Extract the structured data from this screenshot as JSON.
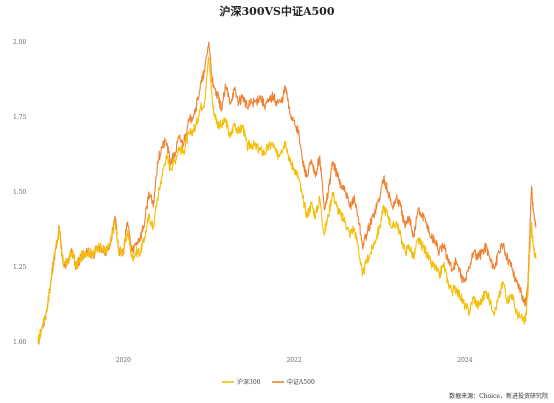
{
  "chart_data": {
    "type": "line",
    "title": "沪深300VS中证A500",
    "xlabel": "",
    "ylabel": "",
    "xlim": [
      2019.0,
      2024.95
    ],
    "ylim": [
      0.98,
      2.06
    ],
    "x_ticks": [
      {
        "label": "2020",
        "value": 2020
      },
      {
        "label": "2022",
        "value": 2022
      },
      {
        "label": "2024",
        "value": 2024
      }
    ],
    "y_ticks": [
      {
        "label": "1.00",
        "value": 1.0
      },
      {
        "label": "1.25",
        "value": 1.25
      },
      {
        "label": "1.50",
        "value": 1.5
      },
      {
        "label": "1.75",
        "value": 1.75
      },
      {
        "label": "2.00",
        "value": 2.0
      }
    ],
    "grid": false,
    "legend_position": "bottom-center",
    "series": [
      {
        "name": "沪深300",
        "color": "#F5BE0A",
        "x": [
          2019.0,
          2019.05,
          2019.1,
          2019.15,
          2019.2,
          2019.25,
          2019.3,
          2019.35,
          2019.4,
          2019.45,
          2019.5,
          2019.55,
          2019.6,
          2019.65,
          2019.7,
          2019.75,
          2019.8,
          2019.85,
          2019.9,
          2019.95,
          2020.0,
          2020.05,
          2020.1,
          2020.15,
          2020.2,
          2020.25,
          2020.3,
          2020.35,
          2020.4,
          2020.45,
          2020.5,
          2020.55,
          2020.6,
          2020.65,
          2020.7,
          2020.75,
          2020.8,
          2020.85,
          2020.9,
          2020.95,
          2021.0,
          2021.05,
          2021.1,
          2021.15,
          2021.2,
          2021.25,
          2021.3,
          2021.35,
          2021.4,
          2021.45,
          2021.5,
          2021.55,
          2021.6,
          2021.65,
          2021.7,
          2021.75,
          2021.8,
          2021.85,
          2021.9,
          2021.95,
          2022.0,
          2022.05,
          2022.1,
          2022.15,
          2022.2,
          2022.25,
          2022.3,
          2022.35,
          2022.4,
          2022.45,
          2022.5,
          2022.55,
          2022.6,
          2022.65,
          2022.7,
          2022.75,
          2022.8,
          2022.85,
          2022.9,
          2022.95,
          2023.0,
          2023.05,
          2023.1,
          2023.15,
          2023.2,
          2023.25,
          2023.3,
          2023.35,
          2023.4,
          2023.45,
          2023.5,
          2023.55,
          2023.6,
          2023.65,
          2023.7,
          2023.75,
          2023.8,
          2023.85,
          2023.9,
          2023.95,
          2024.0,
          2024.05,
          2024.1,
          2024.15,
          2024.2,
          2024.25,
          2024.3,
          2024.35,
          2024.4,
          2024.45,
          2024.5,
          2024.55,
          2024.6,
          2024.65,
          2024.7,
          2024.72,
          2024.74,
          2024.76,
          2024.78,
          2024.8,
          2024.83
        ],
        "values": [
          1.0,
          1.05,
          1.1,
          1.2,
          1.3,
          1.38,
          1.25,
          1.27,
          1.3,
          1.25,
          1.28,
          1.3,
          1.3,
          1.29,
          1.32,
          1.31,
          1.3,
          1.33,
          1.4,
          1.3,
          1.3,
          1.37,
          1.28,
          1.3,
          1.3,
          1.35,
          1.42,
          1.38,
          1.48,
          1.55,
          1.62,
          1.58,
          1.6,
          1.65,
          1.63,
          1.68,
          1.7,
          1.72,
          1.78,
          1.8,
          1.95,
          1.78,
          1.73,
          1.72,
          1.74,
          1.68,
          1.73,
          1.7,
          1.72,
          1.65,
          1.66,
          1.65,
          1.64,
          1.63,
          1.65,
          1.66,
          1.62,
          1.64,
          1.67,
          1.6,
          1.58,
          1.55,
          1.48,
          1.42,
          1.46,
          1.42,
          1.48,
          1.36,
          1.42,
          1.5,
          1.45,
          1.42,
          1.4,
          1.36,
          1.38,
          1.32,
          1.22,
          1.27,
          1.3,
          1.34,
          1.38,
          1.45,
          1.42,
          1.38,
          1.4,
          1.35,
          1.3,
          1.32,
          1.28,
          1.34,
          1.32,
          1.3,
          1.26,
          1.25,
          1.22,
          1.26,
          1.2,
          1.17,
          1.18,
          1.15,
          1.12,
          1.1,
          1.15,
          1.12,
          1.14,
          1.17,
          1.13,
          1.1,
          1.15,
          1.2,
          1.14,
          1.16,
          1.1,
          1.08,
          1.07,
          1.1,
          1.18,
          1.3,
          1.4,
          1.32,
          1.28
        ]
      },
      {
        "name": "中证A500",
        "color": "#EE8232",
        "x": [
          2019.0,
          2019.05,
          2019.1,
          2019.15,
          2019.2,
          2019.25,
          2019.3,
          2019.35,
          2019.4,
          2019.45,
          2019.5,
          2019.55,
          2019.6,
          2019.65,
          2019.7,
          2019.75,
          2019.8,
          2019.85,
          2019.9,
          2019.95,
          2020.0,
          2020.05,
          2020.1,
          2020.15,
          2020.2,
          2020.25,
          2020.3,
          2020.35,
          2020.4,
          2020.45,
          2020.5,
          2020.55,
          2020.6,
          2020.65,
          2020.7,
          2020.75,
          2020.8,
          2020.85,
          2020.9,
          2020.95,
          2021.0,
          2021.05,
          2021.1,
          2021.15,
          2021.2,
          2021.25,
          2021.3,
          2021.35,
          2021.4,
          2021.45,
          2021.5,
          2021.55,
          2021.6,
          2021.65,
          2021.7,
          2021.75,
          2021.8,
          2021.85,
          2021.9,
          2021.95,
          2022.0,
          2022.05,
          2022.1,
          2022.15,
          2022.2,
          2022.25,
          2022.3,
          2022.35,
          2022.4,
          2022.45,
          2022.5,
          2022.55,
          2022.6,
          2022.65,
          2022.7,
          2022.75,
          2022.8,
          2022.85,
          2022.9,
          2022.95,
          2023.0,
          2023.05,
          2023.1,
          2023.15,
          2023.2,
          2023.25,
          2023.3,
          2023.35,
          2023.4,
          2023.45,
          2023.5,
          2023.55,
          2023.6,
          2023.65,
          2023.7,
          2023.75,
          2023.8,
          2023.85,
          2023.9,
          2023.95,
          2024.0,
          2024.05,
          2024.1,
          2024.15,
          2024.2,
          2024.25,
          2024.3,
          2024.35,
          2024.4,
          2024.45,
          2024.5,
          2024.55,
          2024.6,
          2024.65,
          2024.7,
          2024.72,
          2024.74,
          2024.76,
          2024.78,
          2024.8,
          2024.83
        ],
        "values": [
          1.0,
          1.05,
          1.1,
          1.2,
          1.3,
          1.38,
          1.25,
          1.27,
          1.3,
          1.25,
          1.28,
          1.3,
          1.3,
          1.29,
          1.32,
          1.31,
          1.3,
          1.33,
          1.42,
          1.3,
          1.3,
          1.4,
          1.3,
          1.33,
          1.35,
          1.4,
          1.5,
          1.45,
          1.6,
          1.65,
          1.67,
          1.6,
          1.62,
          1.68,
          1.66,
          1.72,
          1.75,
          1.78,
          1.85,
          1.9,
          2.0,
          1.85,
          1.82,
          1.78,
          1.85,
          1.8,
          1.84,
          1.8,
          1.82,
          1.78,
          1.8,
          1.8,
          1.82,
          1.79,
          1.8,
          1.82,
          1.8,
          1.8,
          1.85,
          1.76,
          1.74,
          1.7,
          1.6,
          1.55,
          1.6,
          1.55,
          1.62,
          1.45,
          1.5,
          1.6,
          1.56,
          1.52,
          1.5,
          1.45,
          1.48,
          1.42,
          1.32,
          1.36,
          1.4,
          1.44,
          1.48,
          1.55,
          1.5,
          1.45,
          1.48,
          1.45,
          1.38,
          1.42,
          1.35,
          1.44,
          1.42,
          1.4,
          1.35,
          1.34,
          1.3,
          1.32,
          1.28,
          1.24,
          1.27,
          1.22,
          1.2,
          1.25,
          1.3,
          1.28,
          1.3,
          1.32,
          1.27,
          1.25,
          1.3,
          1.32,
          1.28,
          1.25,
          1.2,
          1.18,
          1.13,
          1.14,
          1.2,
          1.35,
          1.52,
          1.45,
          1.38
        ]
      }
    ],
    "source": "数据来源：Choice，新进投资研究院"
  }
}
